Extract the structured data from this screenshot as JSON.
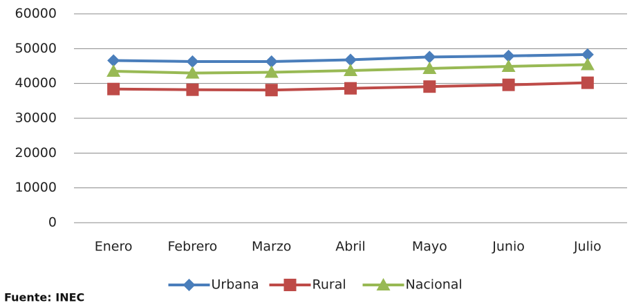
{
  "chart_data": {
    "type": "line",
    "categories": [
      "Enero",
      "Febrero",
      "Marzo",
      "Abril",
      "Mayo",
      "Junio",
      "Julio"
    ],
    "series": [
      {
        "name": "Urbana",
        "color": "#4a7ebb",
        "marker": "diamond",
        "values": [
          46600,
          46300,
          46300,
          46800,
          47600,
          47900,
          48300
        ]
      },
      {
        "name": "Rural",
        "color": "#be4b48",
        "marker": "square",
        "values": [
          38400,
          38200,
          38100,
          38600,
          39100,
          39600,
          40200
        ]
      },
      {
        "name": "Nacional",
        "color": "#98b954",
        "marker": "triangle",
        "values": [
          43500,
          43000,
          43200,
          43700,
          44300,
          44900,
          45400
        ]
      }
    ],
    "ylim": [
      0,
      60000
    ],
    "yticks": [
      0,
      10000,
      20000,
      30000,
      40000,
      50000,
      60000
    ],
    "grid": true,
    "legend": "bottom",
    "source": "Fuente: INEC"
  }
}
